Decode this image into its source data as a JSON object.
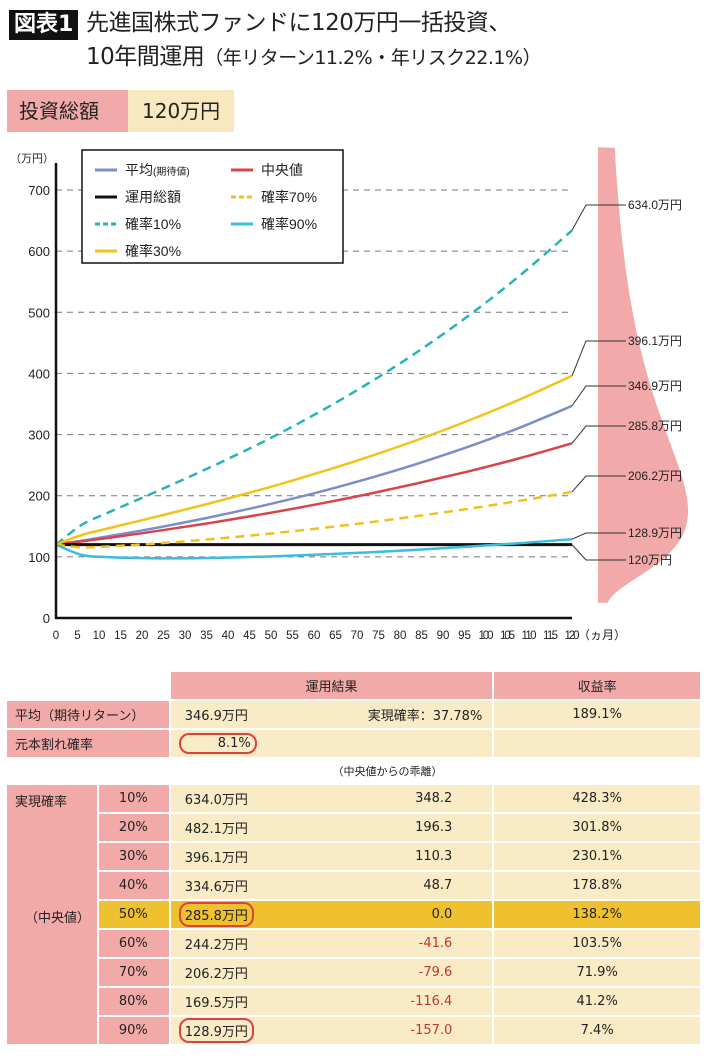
{
  "title": {
    "tag": "図表1",
    "line1": "先進国株式ファンドに120万円一括投資、",
    "line2_main": "10年間運用",
    "line2_sub": "（年リターン11.2%・年リスク22.1%）"
  },
  "investment": {
    "label": "投資総額",
    "value": "120万円"
  },
  "chart_data": {
    "type": "line",
    "ylabel": "（万円）",
    "xlabel": "（ヵ月）",
    "xlim": [
      0,
      120
    ],
    "ylim": [
      0,
      700
    ],
    "xticks": [
      0,
      5,
      10,
      15,
      20,
      25,
      30,
      35,
      40,
      45,
      50,
      55,
      60,
      65,
      70,
      75,
      80,
      85,
      90,
      95,
      100,
      105,
      110,
      115,
      120
    ],
    "yticks": [
      0,
      100,
      200,
      300,
      400,
      500,
      600,
      700
    ],
    "grid": "horizontal dashed",
    "legend_position": "top-left",
    "x": [
      0,
      6,
      12,
      24,
      36,
      48,
      60,
      72,
      84,
      96,
      108,
      120
    ],
    "series": [
      {
        "name": "平均",
        "name_note": "(期待値)",
        "color": "#7b8ec8",
        "dash": false,
        "values": [
          120,
          126.5,
          133.4,
          148.4,
          165.0,
          183.5,
          204.0,
          226.8,
          252.2,
          280.4,
          311.8,
          346.9
        ],
        "end_label": "346.9万円"
      },
      {
        "name": "中央値",
        "color": "#d9434a",
        "dash": false,
        "values": [
          120,
          125.3,
          130.9,
          142.7,
          155.6,
          169.7,
          185.1,
          201.8,
          220.1,
          240.0,
          261.7,
          285.8
        ],
        "end_label": "285.8万円"
      },
      {
        "name": "運用総額",
        "color": "#111111",
        "dash": false,
        "values": [
          120,
          120,
          120,
          120,
          120,
          120,
          120,
          120,
          120,
          120,
          120,
          120
        ],
        "end_label": "120万円"
      },
      {
        "name": "確率70%",
        "color": "#f0c020",
        "dash": true,
        "values": [
          120,
          115.7,
          117.0,
          122.1,
          128.9,
          136.8,
          145.8,
          155.7,
          166.7,
          178.7,
          191.9,
          206.2
        ],
        "end_label": "206.2万円"
      },
      {
        "name": "確率10%",
        "color": "#27b3b8",
        "dash": true,
        "values": [
          120,
          152.4,
          172.0,
          208.9,
          246.9,
          287.6,
          332.1,
          381.0,
          435.0,
          494.7,
          560.8,
          634.0
        ],
        "end_label": "634.0万円"
      },
      {
        "name": "確率90%",
        "color": "#3bbde0",
        "dash": false,
        "values": [
          120,
          103.1,
          99.6,
          97.5,
          98.2,
          100.3,
          103.3,
          107.1,
          111.6,
          116.8,
          122.5,
          128.9
        ],
        "end_label": "128.9万円"
      },
      {
        "name": "確率30%",
        "color": "#f2c318",
        "dash": false,
        "values": [
          120,
          135.7,
          146.4,
          166.8,
          188.0,
          210.7,
          235.3,
          262.0,
          291.1,
          323.0,
          357.9,
          396.1
        ],
        "end_label": "396.1万円"
      }
    ],
    "distribution": {
      "color": "#f2a9a9",
      "shape": "lognormal",
      "median": 285.8
    }
  },
  "table": {
    "headers": [
      "運用結果",
      "収益率"
    ],
    "mean": {
      "label": "平均（期待リターン）",
      "value": "346.9万円",
      "prob": "実現確率：37.78%",
      "rate": "189.1%"
    },
    "loss": {
      "label": "元本割れ確率",
      "value": "8.1%"
    },
    "deviation_caption": "（中央値からの乖離）",
    "group_label": "実現確率",
    "median_label": "（中央値）",
    "rows": [
      {
        "p": "10%",
        "value": "634.0万円",
        "dev": "348.2",
        "rate": "428.3%"
      },
      {
        "p": "20%",
        "value": "482.1万円",
        "dev": "196.3",
        "rate": "301.8%"
      },
      {
        "p": "30%",
        "value": "396.1万円",
        "dev": "110.3",
        "rate": "230.1%"
      },
      {
        "p": "40%",
        "value": "334.6万円",
        "dev": "48.7",
        "rate": "178.8%"
      },
      {
        "p": "50%",
        "value": "285.8万円",
        "dev": "0.0",
        "rate": "138.2%"
      },
      {
        "p": "60%",
        "value": "244.2万円",
        "dev": "-41.6",
        "rate": "103.5%"
      },
      {
        "p": "70%",
        "value": "206.2万円",
        "dev": "-79.6",
        "rate": "71.9%"
      },
      {
        "p": "80%",
        "value": "169.5万円",
        "dev": "-116.4",
        "rate": "41.2%"
      },
      {
        "p": "90%",
        "value": "128.9万円",
        "dev": "-157.0",
        "rate": "7.4%"
      }
    ]
  }
}
